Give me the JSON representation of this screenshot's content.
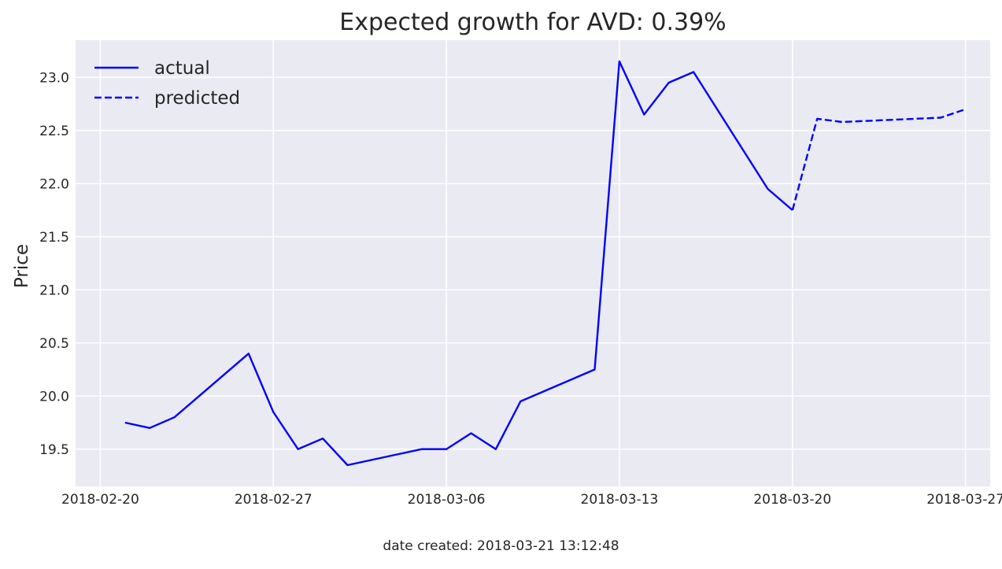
{
  "footer": {
    "label": "date created: 2018-03-21 13:12:48"
  },
  "chart_data": {
    "type": "line",
    "title": "Expected growth for AVD: 0.39%",
    "xlabel": "",
    "ylabel": "Price",
    "grid": true,
    "legend_position": "top-left",
    "xlim": [
      "2018-02-19",
      "2018-03-28"
    ],
    "ylim": [
      19.15,
      23.35
    ],
    "x_ticks": [
      "2018-02-20",
      "2018-02-27",
      "2018-03-06",
      "2018-03-13",
      "2018-03-20",
      "2018-03-27"
    ],
    "y_ticks": [
      "19.5",
      "20.0",
      "20.5",
      "21.0",
      "21.5",
      "22.0",
      "22.5",
      "23.0"
    ],
    "series": [
      {
        "name": "actual",
        "style": "solid",
        "color": "#0000ff",
        "points": [
          {
            "x": "2018-02-21",
            "y": 19.75
          },
          {
            "x": "2018-02-22",
            "y": 19.7
          },
          {
            "x": "2018-02-23",
            "y": 19.8
          },
          {
            "x": "2018-02-26",
            "y": 20.4
          },
          {
            "x": "2018-02-27",
            "y": 19.85
          },
          {
            "x": "2018-02-28",
            "y": 19.5
          },
          {
            "x": "2018-03-01",
            "y": 19.6
          },
          {
            "x": "2018-03-02",
            "y": 19.35
          },
          {
            "x": "2018-03-05",
            "y": 19.5
          },
          {
            "x": "2018-03-06",
            "y": 19.5
          },
          {
            "x": "2018-03-07",
            "y": 19.65
          },
          {
            "x": "2018-03-08",
            "y": 19.5
          },
          {
            "x": "2018-03-09",
            "y": 19.95
          },
          {
            "x": "2018-03-12",
            "y": 20.25
          },
          {
            "x": "2018-03-13",
            "y": 23.15
          },
          {
            "x": "2018-03-14",
            "y": 22.65
          },
          {
            "x": "2018-03-15",
            "y": 22.95
          },
          {
            "x": "2018-03-16",
            "y": 23.05
          },
          {
            "x": "2018-03-19",
            "y": 21.95
          },
          {
            "x": "2018-03-20",
            "y": 21.75
          }
        ]
      },
      {
        "name": "predicted",
        "style": "dashed",
        "color": "#0000ff",
        "points": [
          {
            "x": "2018-03-20",
            "y": 21.75
          },
          {
            "x": "2018-03-21",
            "y": 22.61
          },
          {
            "x": "2018-03-22",
            "y": 22.58
          },
          {
            "x": "2018-03-26",
            "y": 22.62
          },
          {
            "x": "2018-03-27",
            "y": 22.7
          }
        ]
      }
    ]
  }
}
